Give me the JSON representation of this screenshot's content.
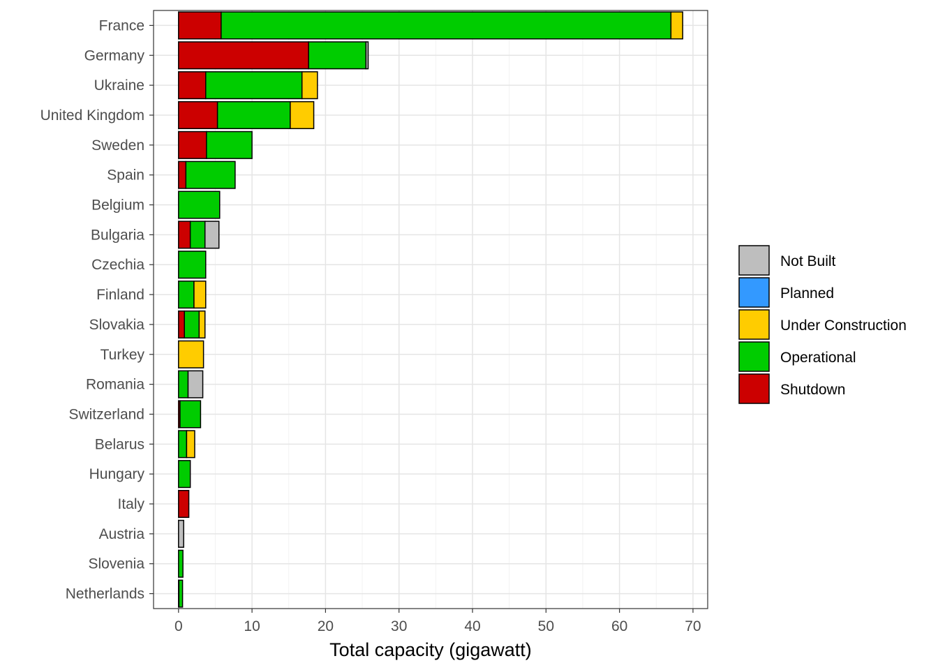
{
  "chart_data": {
    "type": "bar",
    "orientation": "horizontal",
    "stacked": true,
    "title": "",
    "xlabel": "Total capacity (gigawatt)",
    "ylabel": "",
    "xlim": [
      -3.4,
      72.0
    ],
    "xticks": [
      0,
      10,
      20,
      30,
      40,
      50,
      60,
      70
    ],
    "grid": true,
    "legend_position": "right",
    "categories": [
      "France",
      "Germany",
      "Ukraine",
      "United Kingdom",
      "Sweden",
      "Spain",
      "Belgium",
      "Bulgaria",
      "Czechia",
      "Finland",
      "Slovakia",
      "Turkey",
      "Romania",
      "Switzerland",
      "Belarus",
      "Hungary",
      "Italy",
      "Austria",
      "Slovenia",
      "Netherlands"
    ],
    "series": [
      {
        "name": "Shutdown",
        "color": "#CC0000",
        "values": [
          5.8,
          17.7,
          3.7,
          5.3,
          3.8,
          1.0,
          0,
          1.6,
          0,
          0,
          0.8,
          0,
          0,
          0.2,
          0,
          0,
          1.4,
          0,
          0,
          0.05
        ]
      },
      {
        "name": "Operational",
        "color": "#00CC00",
        "values": [
          61.2,
          7.8,
          13.1,
          9.9,
          6.2,
          6.7,
          5.6,
          2.0,
          3.7,
          2.1,
          2.0,
          0,
          1.3,
          2.8,
          1.1,
          1.6,
          0,
          0,
          0.6,
          0.5
        ]
      },
      {
        "name": "Under Construction",
        "color": "#FFCC00",
        "values": [
          1.6,
          0,
          2.1,
          3.2,
          0,
          0,
          0,
          0,
          0,
          1.6,
          0.8,
          3.4,
          0,
          0,
          1.1,
          0,
          0,
          0,
          0,
          0
        ]
      },
      {
        "name": "Planned",
        "color": "#3399FF",
        "values": [
          0,
          0,
          0,
          0,
          0,
          0,
          0,
          0,
          0,
          0,
          0,
          0,
          0,
          0,
          0,
          0,
          0,
          0,
          0,
          0
        ]
      },
      {
        "name": "Not Built",
        "color": "#BEBEBE",
        "values": [
          0,
          0.3,
          0,
          0,
          0,
          0,
          0,
          1.9,
          0,
          0,
          0,
          0,
          2.0,
          0,
          0,
          0,
          0,
          0.7,
          0,
          0
        ]
      }
    ],
    "legend_order": [
      "Not Built",
      "Planned",
      "Under Construction",
      "Operational",
      "Shutdown"
    ]
  }
}
